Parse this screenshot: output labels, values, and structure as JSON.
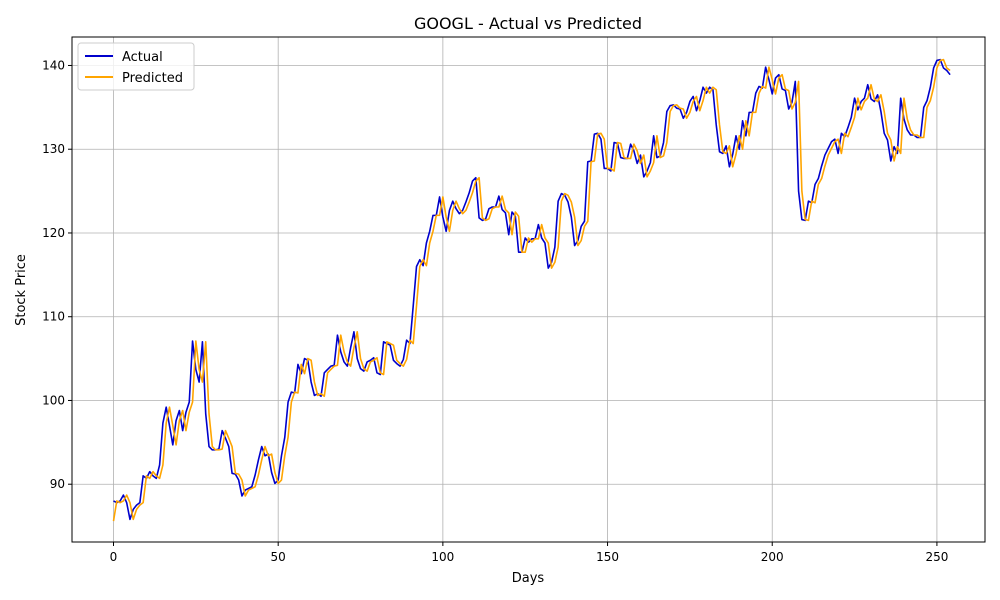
{
  "chart_data": {
    "type": "line",
    "title": "GOOGL - Actual vs Predicted",
    "xlabel": "Days",
    "ylabel": "Stock Price",
    "xlim": [
      -12.6,
      264.6
    ],
    "ylim": [
      83.1,
      143.4
    ],
    "xticks": [
      0,
      50,
      100,
      150,
      200,
      250
    ],
    "yticks": [
      90,
      100,
      110,
      120,
      130,
      140
    ],
    "grid": true,
    "legend": "top-left",
    "series": [
      {
        "name": "Actual",
        "color": "#0000cc",
        "values": [
          88.0,
          87.8,
          88.0,
          88.7,
          87.8,
          85.8,
          87.0,
          87.5,
          87.8,
          91.0,
          90.7,
          91.5,
          91.0,
          90.7,
          92.3,
          97.3,
          99.2,
          97.0,
          94.7,
          97.6,
          98.8,
          96.4,
          98.6,
          99.8,
          107.1,
          103.7,
          102.2,
          107.0,
          98.4,
          94.5,
          94.1,
          94.1,
          94.2,
          96.4,
          95.5,
          94.5,
          91.3,
          91.2,
          90.5,
          88.6,
          89.3,
          89.5,
          89.7,
          91.1,
          92.9,
          94.5,
          93.4,
          93.6,
          91.4,
          90.1,
          90.5,
          93.4,
          95.6,
          99.8,
          101.0,
          100.9,
          104.3,
          103.2,
          105.0,
          104.8,
          102.2,
          100.6,
          100.8,
          100.5,
          103.3,
          103.7,
          104.1,
          104.2,
          107.8,
          105.8,
          104.6,
          104.1,
          106.3,
          108.2,
          105.0,
          103.8,
          103.5,
          104.6,
          104.8,
          105.1,
          103.3,
          103.1,
          107.0,
          106.8,
          106.6,
          104.8,
          104.4,
          104.1,
          104.9,
          107.2,
          106.8,
          111.3,
          116.0,
          116.8,
          116.1,
          118.8,
          120.2,
          122.1,
          122.1,
          124.3,
          121.9,
          120.2,
          122.7,
          123.8,
          122.9,
          122.3,
          122.7,
          123.7,
          124.8,
          126.2,
          126.6,
          121.8,
          121.5,
          121.7,
          122.9,
          123.1,
          123.1,
          124.4,
          122.8,
          122.4,
          119.8,
          122.5,
          122.0,
          117.7,
          117.7,
          119.4,
          118.9,
          119.3,
          119.3,
          121.0,
          119.4,
          118.8,
          115.8,
          116.5,
          118.3,
          123.8,
          124.7,
          124.5,
          123.7,
          121.9,
          118.5,
          119.1,
          120.8,
          121.4,
          128.5,
          128.6,
          131.8,
          131.9,
          131.2,
          127.7,
          127.7,
          127.4,
          130.8,
          130.7,
          129.0,
          128.9,
          128.9,
          130.6,
          129.8,
          128.3,
          129.3,
          126.7,
          127.4,
          128.4,
          131.6,
          129.0,
          129.2,
          130.8,
          134.5,
          135.2,
          135.3,
          134.9,
          134.8,
          133.7,
          134.4,
          135.7,
          136.3,
          134.6,
          135.8,
          137.4,
          136.7,
          137.4,
          137.1,
          132.9,
          129.7,
          129.5,
          130.4,
          127.9,
          129.4,
          131.6,
          130.0,
          133.4,
          131.6,
          134.4,
          134.4,
          136.7,
          137.5,
          137.3,
          139.8,
          138.3,
          136.6,
          138.5,
          138.9,
          137.2,
          137.0,
          134.8,
          135.6,
          138.1,
          125.0,
          121.6,
          121.5,
          123.8,
          123.6,
          125.8,
          126.5,
          128.0,
          129.3,
          130.1,
          130.9,
          131.2,
          129.5,
          131.9,
          131.5,
          132.6,
          133.8,
          136.1,
          134.7,
          135.7,
          136.1,
          137.7,
          136.0,
          135.7,
          136.5,
          134.5,
          131.9,
          131.1,
          128.6,
          130.3,
          129.5,
          136.1,
          133.6,
          132.3,
          131.7,
          131.7,
          131.4,
          131.4,
          135.0,
          135.8,
          137.4,
          139.7,
          140.6,
          140.7,
          139.7,
          139.4,
          138.9
        ]
      },
      {
        "name": "Predicted",
        "color": "#ffa500",
        "values": [
          85.6,
          88.0,
          87.8,
          88.0,
          88.7,
          87.8,
          85.8,
          87.0,
          87.5,
          87.8,
          91.0,
          90.7,
          91.5,
          91.0,
          90.7,
          92.3,
          97.3,
          99.2,
          97.0,
          94.7,
          97.6,
          98.8,
          96.4,
          98.6,
          99.8,
          107.1,
          103.7,
          102.2,
          107.0,
          98.4,
          94.5,
          94.1,
          94.1,
          94.2,
          96.4,
          95.5,
          94.5,
          91.3,
          91.2,
          90.5,
          88.6,
          89.3,
          89.5,
          89.7,
          91.1,
          92.9,
          94.5,
          93.4,
          93.6,
          91.4,
          90.1,
          90.5,
          93.4,
          95.6,
          99.8,
          101.0,
          100.9,
          104.3,
          103.2,
          105.0,
          104.8,
          102.2,
          100.6,
          100.8,
          100.5,
          103.3,
          103.7,
          104.1,
          104.2,
          107.8,
          105.8,
          104.6,
          104.1,
          106.3,
          108.2,
          105.0,
          103.8,
          103.5,
          104.6,
          104.8,
          105.1,
          103.3,
          103.1,
          107.0,
          106.8,
          106.6,
          104.8,
          104.4,
          104.1,
          104.9,
          107.2,
          106.8,
          111.3,
          116.0,
          116.8,
          116.1,
          118.8,
          120.2,
          122.1,
          122.1,
          124.3,
          121.9,
          120.2,
          122.7,
          123.8,
          122.9,
          122.3,
          122.7,
          123.7,
          124.8,
          126.2,
          126.6,
          121.8,
          121.5,
          121.7,
          122.9,
          123.1,
          123.1,
          124.4,
          122.8,
          122.4,
          119.8,
          122.5,
          122.0,
          117.7,
          117.7,
          119.4,
          118.9,
          119.3,
          119.3,
          121.0,
          119.4,
          118.8,
          115.8,
          116.5,
          118.3,
          123.8,
          124.7,
          124.5,
          123.7,
          121.9,
          118.5,
          119.1,
          120.8,
          121.4,
          128.5,
          128.6,
          131.8,
          131.9,
          131.2,
          127.7,
          127.7,
          127.4,
          130.8,
          130.7,
          129.0,
          128.9,
          128.9,
          130.6,
          129.8,
          128.3,
          129.3,
          126.7,
          127.4,
          128.4,
          131.6,
          129.0,
          129.2,
          130.8,
          134.5,
          135.2,
          135.3,
          134.9,
          134.8,
          133.7,
          134.4,
          135.7,
          136.3,
          134.6,
          135.8,
          137.4,
          136.7,
          137.4,
          137.1,
          132.9,
          129.7,
          129.5,
          130.4,
          127.9,
          129.4,
          131.6,
          130.0,
          133.4,
          131.6,
          134.4,
          134.4,
          136.7,
          137.5,
          137.3,
          139.8,
          138.3,
          136.6,
          138.5,
          138.9,
          137.2,
          137.0,
          134.8,
          135.6,
          138.1,
          125.0,
          121.6,
          121.5,
          123.8,
          123.6,
          125.8,
          126.5,
          128.0,
          129.3,
          130.1,
          130.9,
          131.2,
          129.5,
          131.9,
          131.5,
          132.6,
          133.8,
          136.1,
          134.7,
          135.7,
          136.1,
          137.7,
          136.0,
          135.7,
          136.5,
          134.5,
          131.9,
          131.1,
          128.6,
          130.3,
          129.5,
          136.1,
          133.6,
          132.3,
          131.7,
          131.7,
          131.4,
          131.4,
          135.0,
          135.8,
          137.4,
          139.7,
          140.6,
          140.7,
          139.7,
          139.4
        ]
      }
    ]
  }
}
